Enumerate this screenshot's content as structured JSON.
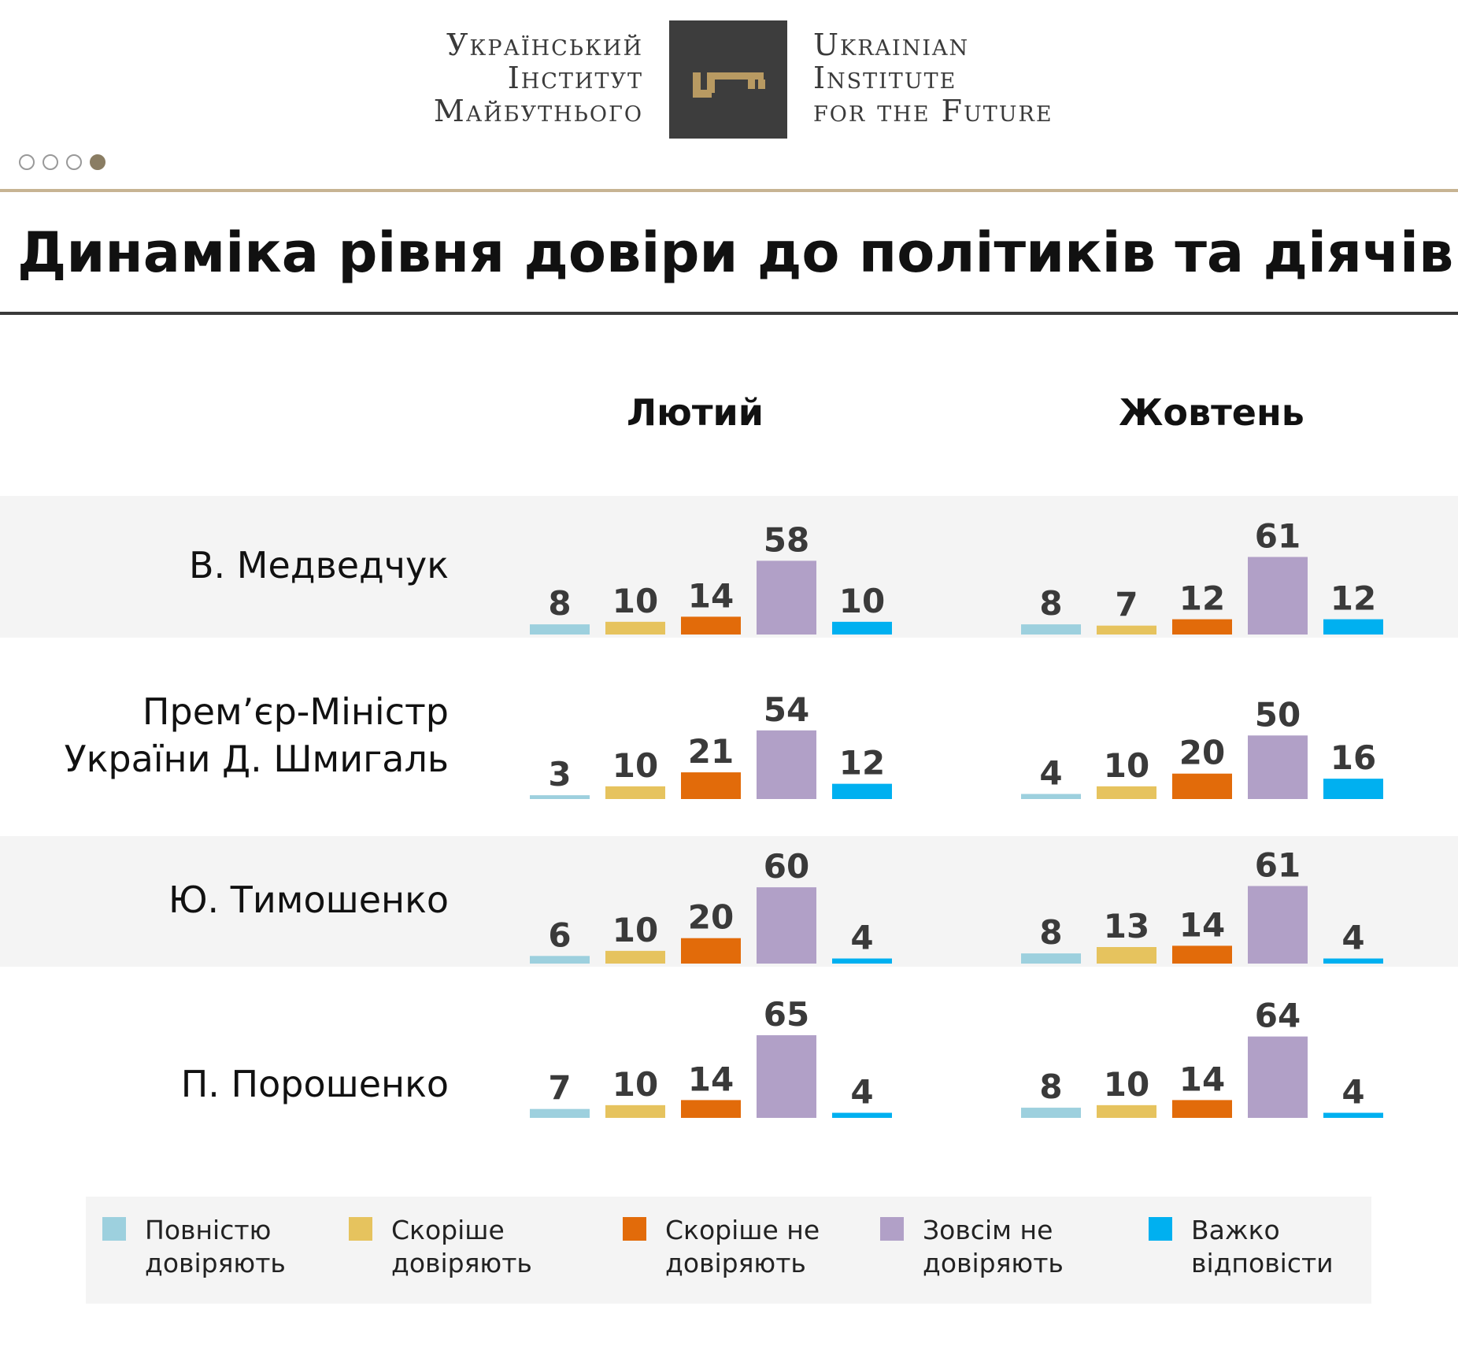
{
  "header": {
    "logo_ua_lines": [
      "Український",
      "Інститут",
      "Майбутнього"
    ],
    "logo_en_lines": [
      "Ukrainian",
      "Institute",
      "for the Future"
    ],
    "logo_icon": "key-icon",
    "pagination": {
      "total": 4,
      "active": 4
    },
    "colors": {
      "gold": "#c7b493",
      "logo_bg": "#3d3d3d",
      "key": "#b89a62"
    }
  },
  "title": "Динаміка рівня довіри до політиків та діячів",
  "chart_data": {
    "type": "bar",
    "title": "Динаміка рівня довіри до політиків та діячів",
    "xlabel": "",
    "ylabel": "",
    "ylim": [
      0,
      65
    ],
    "grid": false,
    "legend_placement": "bottom",
    "periods": [
      "Лютий",
      "Жовтень"
    ],
    "legend": [
      {
        "name": "Повністю довіряють",
        "color": "#9dd0de"
      },
      {
        "name": "Скоріше довіряють",
        "color": "#e6c35e"
      },
      {
        "name": "Скоріше не довіряють",
        "color": "#e26b0a"
      },
      {
        "name": "Зовсім не довіряють",
        "color": "#b1a0c7"
      },
      {
        "name": "Важко відповісти",
        "color": "#00b0f0"
      }
    ],
    "rows": [
      {
        "label_lines": [
          "В. Медведчук"
        ],
        "values": [
          [
            8,
            10,
            14,
            58,
            10
          ],
          [
            8,
            7,
            12,
            61,
            12
          ]
        ]
      },
      {
        "label_lines": [
          "Прем’єр-Міністр",
          "України Д. Шмигаль"
        ],
        "values": [
          [
            3,
            10,
            21,
            54,
            12
          ],
          [
            4,
            10,
            20,
            50,
            16
          ]
        ]
      },
      {
        "label_lines": [
          "Ю. Тимошенко"
        ],
        "values": [
          [
            6,
            10,
            20,
            60,
            4
          ],
          [
            8,
            13,
            14,
            61,
            4
          ]
        ]
      },
      {
        "label_lines": [
          "П. Порошенко"
        ],
        "values": [
          [
            7,
            10,
            14,
            65,
            4
          ],
          [
            8,
            10,
            14,
            64,
            4
          ]
        ]
      }
    ]
  }
}
